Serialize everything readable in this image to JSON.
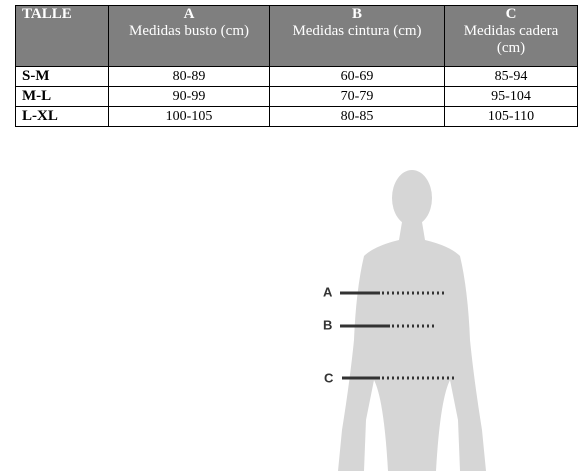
{
  "table": {
    "header": [
      {
        "letter": "TALLE"
      },
      {
        "letter": "A",
        "label": "Medidas busto (cm)"
      },
      {
        "letter": "B",
        "label": "Medidas cintura (cm)"
      },
      {
        "letter": "C",
        "label": "Medidas cadera (cm)"
      }
    ],
    "rows": [
      [
        "S-M",
        "80-89",
        "60-69",
        "85-94"
      ],
      [
        "M-L",
        "90-99",
        "70-79",
        "95-104"
      ],
      [
        "L-XL",
        "100-105",
        "80-85",
        "105-110"
      ]
    ]
  },
  "diagram": {
    "markers": [
      "A",
      "B",
      "C"
    ]
  }
}
